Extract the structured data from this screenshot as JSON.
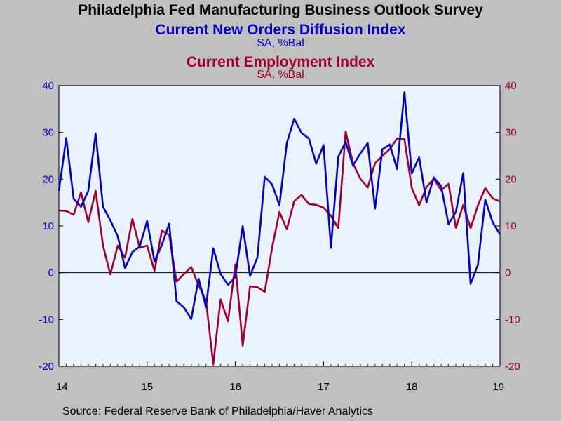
{
  "title": "Philadelphia Fed Manufacturing Business Outlook Survey",
  "source": "Source:  Federal Reserve Bank of Philadelphia/Haver Analytics",
  "chart_data": {
    "type": "line",
    "x_start": "2014-01",
    "frequency": "monthly",
    "x_ticks": [
      "14",
      "15",
      "16",
      "17",
      "18",
      "19"
    ],
    "y_left": {
      "ticks": [
        "-20",
        "-10",
        "0",
        "10",
        "20",
        "30",
        "40"
      ],
      "range": [
        -20,
        40
      ]
    },
    "y_right": {
      "ticks": [
        "-20",
        "-10",
        "0",
        "10",
        "20",
        "30",
        "40"
      ],
      "range": [
        -20,
        40
      ]
    },
    "zero_line": true,
    "grid": false,
    "colors": {
      "series1": "#0000c8",
      "series2": "#a0002a",
      "plot_bg": "#eaf2fe",
      "page_bg": "#c0c0c0"
    },
    "series": [
      {
        "name": "Current New Orders Diffusion Index",
        "units": "SA, %Bal",
        "axis": "left",
        "values": [
          17.5,
          28.8,
          15.8,
          14.1,
          17.5,
          29.8,
          14.1,
          11.2,
          7.8,
          1.0,
          4.4,
          5.6,
          11.1,
          2.4,
          5.9,
          10.5,
          -6.1,
          -7.4,
          -9.9,
          -1.3,
          -7.3,
          5.2,
          -0.3,
          -2.6,
          -0.9,
          10.0,
          -0.7,
          3.3,
          20.5,
          18.9,
          14.4,
          27.7,
          32.9,
          29.9,
          28.7,
          23.3,
          27.3,
          5.3,
          24.8,
          28.0,
          22.9,
          25.5,
          27.7,
          13.7,
          26.4,
          27.4,
          22.2,
          38.6,
          21.2,
          24.7,
          15.0,
          20.4,
          18.5,
          10.4,
          13.0,
          21.3,
          -2.4,
          1.7,
          15.6,
          10.8,
          8.2
        ]
      },
      {
        "name": "Current Employment Index",
        "units": "SA, %Bal",
        "axis": "right",
        "values": [
          13.3,
          13.2,
          12.4,
          17.2,
          10.8,
          17.5,
          5.8,
          -0.4,
          5.8,
          3.2,
          11.5,
          5.3,
          5.8,
          0.4,
          9.0,
          8.1,
          -1.9,
          -0.3,
          1.2,
          -2.7,
          -5.9,
          -19.5,
          -5.7,
          -10.4,
          1.8,
          -15.6,
          -2.9,
          -3.1,
          -4.1,
          5.3,
          13.0,
          9.3,
          15.3,
          16.6,
          14.7,
          14.5,
          13.9,
          12.2,
          9.5,
          30.2,
          23.4,
          20.1,
          18.2,
          23.4,
          25.0,
          26.4,
          28.7,
          28.6,
          18.1,
          14.4,
          18.3,
          20.1,
          17.6,
          19.0,
          9.6,
          14.5,
          9.5,
          14.4,
          18.1,
          15.9,
          15.2
        ]
      }
    ]
  }
}
